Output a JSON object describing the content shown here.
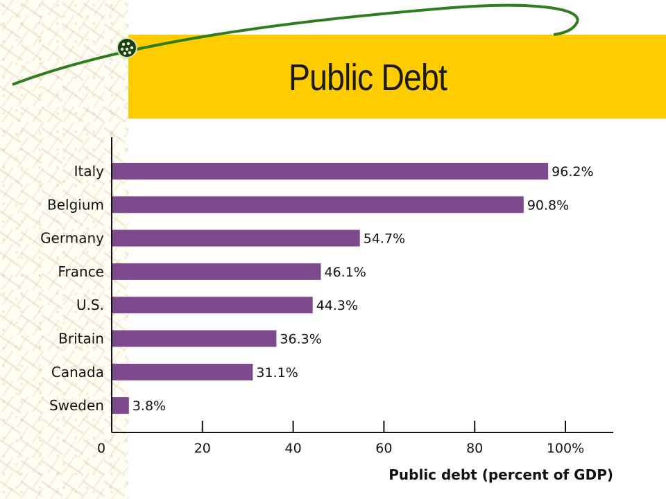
{
  "slide": {
    "title": "Public Debt",
    "colors": {
      "title_bar": "#ffcc00",
      "swoosh": "#2e7d1e",
      "bar": "#7e4a8e"
    },
    "icons": [
      "molecule-pattern-icon",
      "swoosh-orb-icon"
    ]
  },
  "chart_data": {
    "type": "bar",
    "orientation": "horizontal",
    "categories": [
      "Italy",
      "Belgium",
      "Germany",
      "France",
      "U.S.",
      "Britain",
      "Canada",
      "Sweden"
    ],
    "values": [
      96.2,
      90.8,
      54.7,
      46.1,
      44.3,
      36.3,
      31.1,
      3.8
    ],
    "value_labels": [
      "96.2%",
      "90.8%",
      "54.7%",
      "46.1%",
      "44.3%",
      "36.3%",
      "31.1%",
      "3.8%"
    ],
    "xlabel": "Public debt (percent of GDP)",
    "ylabel": "",
    "xlim": [
      0,
      110
    ],
    "xticks": [
      0,
      20,
      40,
      60,
      80,
      100
    ],
    "xtick_labels": [
      "0",
      "20",
      "40",
      "60",
      "80",
      "100%"
    ],
    "grid": false
  }
}
